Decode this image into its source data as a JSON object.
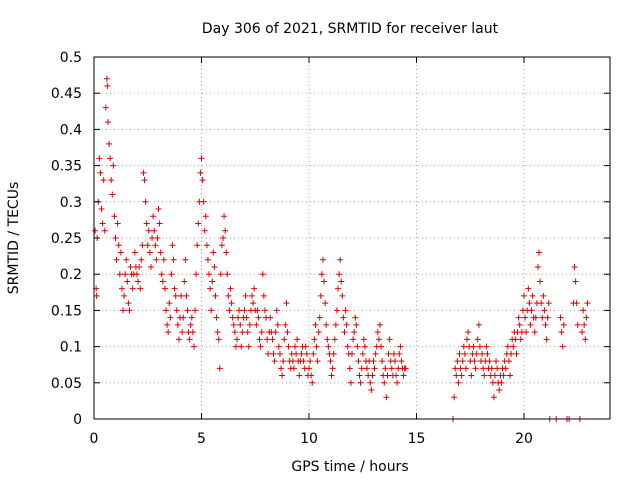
{
  "chart_data": {
    "type": "scatter",
    "title": "Day 306 of 2021, SRMTID for receiver laut",
    "xlabel": "GPS time / hours",
    "ylabel": "SRMTID / TECUs",
    "xlim": [
      0,
      24
    ],
    "ylim": [
      0,
      0.5
    ],
    "grid": true,
    "marker": "plus",
    "color": "#e00000",
    "x_ticks": [
      0,
      5,
      10,
      15,
      20
    ],
    "x_tick_labels": [
      "0",
      "5",
      "10",
      "15",
      "20"
    ],
    "y_ticks": [
      0,
      0.05,
      0.1,
      0.15,
      0.2,
      0.25,
      0.3,
      0.35,
      0.4,
      0.45,
      0.5
    ],
    "y_tick_labels": [
      "0",
      "0.05",
      "0.1",
      "0.15",
      "0.2",
      "0.25",
      "0.3",
      "0.35",
      "0.4",
      "0.45",
      "0.5"
    ],
    "points": [
      [
        0.05,
        0.26
      ],
      [
        0.1,
        0.18
      ],
      [
        0.12,
        0.17
      ],
      [
        0.15,
        0.25
      ],
      [
        0.2,
        0.3
      ],
      [
        0.25,
        0.36
      ],
      [
        0.3,
        0.34
      ],
      [
        0.35,
        0.29
      ],
      [
        0.4,
        0.27
      ],
      [
        0.45,
        0.33
      ],
      [
        0.5,
        0.26
      ],
      [
        0.55,
        0.43
      ],
      [
        0.6,
        0.47
      ],
      [
        0.62,
        0.46
      ],
      [
        0.65,
        0.41
      ],
      [
        0.7,
        0.38
      ],
      [
        0.75,
        0.36
      ],
      [
        0.8,
        0.33
      ],
      [
        0.85,
        0.31
      ],
      [
        0.9,
        0.35
      ],
      [
        0.95,
        0.28
      ],
      [
        1.0,
        0.25
      ],
      [
        1.05,
        0.22
      ],
      [
        1.1,
        0.27
      ],
      [
        1.15,
        0.24
      ],
      [
        1.2,
        0.2
      ],
      [
        1.25,
        0.23
      ],
      [
        1.3,
        0.18
      ],
      [
        1.35,
        0.15
      ],
      [
        1.4,
        0.17
      ],
      [
        1.45,
        0.2
      ],
      [
        1.5,
        0.22
      ],
      [
        1.55,
        0.19
      ],
      [
        1.6,
        0.16
      ],
      [
        1.65,
        0.15
      ],
      [
        1.7,
        0.21
      ],
      [
        1.75,
        0.2
      ],
      [
        1.8,
        0.18
      ],
      [
        1.85,
        0.2
      ],
      [
        1.9,
        0.23
      ],
      [
        1.95,
        0.21
      ],
      [
        2.0,
        0.2
      ],
      [
        2.05,
        0.19
      ],
      [
        2.1,
        0.21
      ],
      [
        2.15,
        0.18
      ],
      [
        2.2,
        0.22
      ],
      [
        2.25,
        0.24
      ],
      [
        2.3,
        0.34
      ],
      [
        2.35,
        0.33
      ],
      [
        2.4,
        0.3
      ],
      [
        2.45,
        0.27
      ],
      [
        2.5,
        0.24
      ],
      [
        2.55,
        0.26
      ],
      [
        2.6,
        0.23
      ],
      [
        2.65,
        0.21
      ],
      [
        2.7,
        0.25
      ],
      [
        2.75,
        0.28
      ],
      [
        2.8,
        0.26
      ],
      [
        2.85,
        0.24
      ],
      [
        2.9,
        0.22
      ],
      [
        2.95,
        0.25
      ],
      [
        3.0,
        0.29
      ],
      [
        3.05,
        0.27
      ],
      [
        3.1,
        0.23
      ],
      [
        3.15,
        0.2
      ],
      [
        3.2,
        0.19
      ],
      [
        3.25,
        0.22
      ],
      [
        3.3,
        0.18
      ],
      [
        3.35,
        0.15
      ],
      [
        3.4,
        0.13
      ],
      [
        3.45,
        0.12
      ],
      [
        3.5,
        0.16
      ],
      [
        3.55,
        0.14
      ],
      [
        3.6,
        0.2
      ],
      [
        3.65,
        0.24
      ],
      [
        3.7,
        0.22
      ],
      [
        3.75,
        0.18
      ],
      [
        3.8,
        0.17
      ],
      [
        3.85,
        0.15
      ],
      [
        3.9,
        0.13
      ],
      [
        3.95,
        0.11
      ],
      [
        4.0,
        0.14
      ],
      [
        4.05,
        0.17
      ],
      [
        4.1,
        0.12
      ],
      [
        4.15,
        0.14
      ],
      [
        4.2,
        0.19
      ],
      [
        4.25,
        0.22
      ],
      [
        4.3,
        0.17
      ],
      [
        4.35,
        0.15
      ],
      [
        4.4,
        0.12
      ],
      [
        4.45,
        0.11
      ],
      [
        4.5,
        0.13
      ],
      [
        4.55,
        0.14
      ],
      [
        4.6,
        0.12
      ],
      [
        4.65,
        0.1
      ],
      [
        4.7,
        0.15
      ],
      [
        4.75,
        0.2
      ],
      [
        4.8,
        0.24
      ],
      [
        4.85,
        0.27
      ],
      [
        4.9,
        0.3
      ],
      [
        4.95,
        0.34
      ],
      [
        5.0,
        0.36
      ],
      [
        5.05,
        0.33
      ],
      [
        5.1,
        0.3
      ],
      [
        5.15,
        0.26
      ],
      [
        5.2,
        0.28
      ],
      [
        5.25,
        0.24
      ],
      [
        5.3,
        0.22
      ],
      [
        5.35,
        0.2
      ],
      [
        5.4,
        0.18
      ],
      [
        5.45,
        0.15
      ],
      [
        5.5,
        0.19
      ],
      [
        5.55,
        0.23
      ],
      [
        5.6,
        0.21
      ],
      [
        5.65,
        0.17
      ],
      [
        5.7,
        0.14
      ],
      [
        5.75,
        0.12
      ],
      [
        5.8,
        0.11
      ],
      [
        5.85,
        0.07
      ],
      [
        5.9,
        0.2
      ],
      [
        5.95,
        0.24
      ],
      [
        6.0,
        0.25
      ],
      [
        6.05,
        0.28
      ],
      [
        6.1,
        0.26
      ],
      [
        6.15,
        0.23
      ],
      [
        6.2,
        0.2
      ],
      [
        6.25,
        0.17
      ],
      [
        6.3,
        0.15
      ],
      [
        6.35,
        0.18
      ],
      [
        6.4,
        0.16
      ],
      [
        6.45,
        0.14
      ],
      [
        6.5,
        0.13
      ],
      [
        6.55,
        0.12
      ],
      [
        6.6,
        0.1
      ],
      [
        6.65,
        0.11
      ],
      [
        6.7,
        0.14
      ],
      [
        6.75,
        0.15
      ],
      [
        6.8,
        0.13
      ],
      [
        6.85,
        0.1
      ],
      [
        6.9,
        0.12
      ],
      [
        6.95,
        0.14
      ],
      [
        7.0,
        0.15
      ],
      [
        7.05,
        0.17
      ],
      [
        7.1,
        0.14
      ],
      [
        7.15,
        0.12
      ],
      [
        7.2,
        0.1
      ],
      [
        7.25,
        0.13
      ],
      [
        7.3,
        0.15
      ],
      [
        7.35,
        0.17
      ],
      [
        7.4,
        0.16
      ],
      [
        7.45,
        0.18
      ],
      [
        7.5,
        0.15
      ],
      [
        7.55,
        0.13
      ],
      [
        7.6,
        0.15
      ],
      [
        7.65,
        0.14
      ],
      [
        7.7,
        0.11
      ],
      [
        7.75,
        0.1
      ],
      [
        7.8,
        0.12
      ],
      [
        7.85,
        0.2
      ],
      [
        7.9,
        0.17
      ],
      [
        7.95,
        0.15
      ],
      [
        8.0,
        0.14
      ],
      [
        8.05,
        0.11
      ],
      [
        8.1,
        0.09
      ],
      [
        8.15,
        0.12
      ],
      [
        8.2,
        0.14
      ],
      [
        8.25,
        0.12
      ],
      [
        8.3,
        0.11
      ],
      [
        8.35,
        0.09
      ],
      [
        8.4,
        0.08
      ],
      [
        8.45,
        0.12
      ],
      [
        8.5,
        0.15
      ],
      [
        8.55,
        0.13
      ],
      [
        8.6,
        0.1
      ],
      [
        8.65,
        0.09
      ],
      [
        8.7,
        0.07
      ],
      [
        8.75,
        0.06
      ],
      [
        8.8,
        0.08
      ],
      [
        8.85,
        0.11
      ],
      [
        8.9,
        0.13
      ],
      [
        8.95,
        0.16
      ],
      [
        9.0,
        0.12
      ],
      [
        9.05,
        0.1
      ],
      [
        9.1,
        0.08
      ],
      [
        9.15,
        0.07
      ],
      [
        9.2,
        0.09
      ],
      [
        9.25,
        0.08
      ],
      [
        9.3,
        0.07
      ],
      [
        9.35,
        0.1
      ],
      [
        9.4,
        0.09
      ],
      [
        9.45,
        0.11
      ],
      [
        9.5,
        0.08
      ],
      [
        9.55,
        0.06
      ],
      [
        9.6,
        0.08
      ],
      [
        9.65,
        0.09
      ],
      [
        9.7,
        0.1
      ],
      [
        9.75,
        0.08
      ],
      [
        9.8,
        0.07
      ],
      [
        9.85,
        0.1
      ],
      [
        9.9,
        0.09
      ],
      [
        9.95,
        0.06
      ],
      [
        10.0,
        0.07
      ],
      [
        10.05,
        0.08
      ],
      [
        10.1,
        0.06
      ],
      [
        10.15,
        0.05
      ],
      [
        10.2,
        0.09
      ],
      [
        10.25,
        0.11
      ],
      [
        10.3,
        0.13
      ],
      [
        10.35,
        0.1
      ],
      [
        10.4,
        0.08
      ],
      [
        10.45,
        0.12
      ],
      [
        10.5,
        0.14
      ],
      [
        10.55,
        0.17
      ],
      [
        10.6,
        0.2
      ],
      [
        10.65,
        0.22
      ],
      [
        10.7,
        0.19
      ],
      [
        10.75,
        0.16
      ],
      [
        10.8,
        0.13
      ],
      [
        10.85,
        0.11
      ],
      [
        10.9,
        0.1
      ],
      [
        10.95,
        0.09
      ],
      [
        11.0,
        0.08
      ],
      [
        11.05,
        0.06
      ],
      [
        11.1,
        0.07
      ],
      [
        11.15,
        0.09
      ],
      [
        11.2,
        0.11
      ],
      [
        11.25,
        0.13
      ],
      [
        11.3,
        0.15
      ],
      [
        11.35,
        0.18
      ],
      [
        11.4,
        0.2
      ],
      [
        11.45,
        0.22
      ],
      [
        11.5,
        0.19
      ],
      [
        11.55,
        0.17
      ],
      [
        11.6,
        0.14
      ],
      [
        11.65,
        0.12
      ],
      [
        11.7,
        0.15
      ],
      [
        11.75,
        0.13
      ],
      [
        11.8,
        0.1
      ],
      [
        11.85,
        0.09
      ],
      [
        11.9,
        0.07
      ],
      [
        11.95,
        0.05
      ],
      [
        12.0,
        0.09
      ],
      [
        12.05,
        0.11
      ],
      [
        12.1,
        0.12
      ],
      [
        12.15,
        0.14
      ],
      [
        12.2,
        0.13
      ],
      [
        12.25,
        0.1
      ],
      [
        12.3,
        0.08
      ],
      [
        12.35,
        0.06
      ],
      [
        12.4,
        0.05
      ],
      [
        12.45,
        0.07
      ],
      [
        12.5,
        0.09
      ],
      [
        12.55,
        0.11
      ],
      [
        12.6,
        0.1
      ],
      [
        12.65,
        0.08
      ],
      [
        12.7,
        0.07
      ],
      [
        12.75,
        0.06
      ],
      [
        12.8,
        0.08
      ],
      [
        12.85,
        0.05
      ],
      [
        12.9,
        0.04
      ],
      [
        12.95,
        0.06
      ],
      [
        13.0,
        0.08
      ],
      [
        13.05,
        0.07
      ],
      [
        13.1,
        0.09
      ],
      [
        13.15,
        0.1
      ],
      [
        13.2,
        0.12
      ],
      [
        13.25,
        0.11
      ],
      [
        13.3,
        0.13
      ],
      [
        13.35,
        0.1
      ],
      [
        13.4,
        0.08
      ],
      [
        13.45,
        0.06
      ],
      [
        13.5,
        0.05
      ],
      [
        13.55,
        0.07
      ],
      [
        13.6,
        0.03
      ],
      [
        13.65,
        0.06
      ],
      [
        13.7,
        0.09
      ],
      [
        13.75,
        0.11
      ],
      [
        13.8,
        0.08
      ],
      [
        13.85,
        0.07
      ],
      [
        13.9,
        0.06
      ],
      [
        13.95,
        0.09
      ],
      [
        14.0,
        0.08
      ],
      [
        14.05,
        0.06
      ],
      [
        14.1,
        0.05
      ],
      [
        14.15,
        0.07
      ],
      [
        14.2,
        0.09
      ],
      [
        14.25,
        0.1
      ],
      [
        14.3,
        0.08
      ],
      [
        14.35,
        0.07
      ],
      [
        14.4,
        0.06
      ],
      [
        14.45,
        0.07
      ],
      [
        14.5,
        0.07
      ],
      [
        16.7,
        0.0
      ],
      [
        16.75,
        0.03
      ],
      [
        16.8,
        0.07
      ],
      [
        16.85,
        0.06
      ],
      [
        16.9,
        0.08
      ],
      [
        16.95,
        0.05
      ],
      [
        17.0,
        0.09
      ],
      [
        17.05,
        0.07
      ],
      [
        17.1,
        0.06
      ],
      [
        17.15,
        0.08
      ],
      [
        17.2,
        0.1
      ],
      [
        17.25,
        0.09
      ],
      [
        17.3,
        0.07
      ],
      [
        17.35,
        0.11
      ],
      [
        17.4,
        0.12
      ],
      [
        17.45,
        0.1
      ],
      [
        17.5,
        0.08
      ],
      [
        17.55,
        0.06
      ],
      [
        17.6,
        0.09
      ],
      [
        17.65,
        0.1
      ],
      [
        17.7,
        0.08
      ],
      [
        17.75,
        0.07
      ],
      [
        17.8,
        0.09
      ],
      [
        17.85,
        0.11
      ],
      [
        17.9,
        0.13
      ],
      [
        17.95,
        0.1
      ],
      [
        18.0,
        0.08
      ],
      [
        18.05,
        0.09
      ],
      [
        18.1,
        0.07
      ],
      [
        18.15,
        0.06
      ],
      [
        18.2,
        0.08
      ],
      [
        18.25,
        0.1
      ],
      [
        18.3,
        0.09
      ],
      [
        18.35,
        0.07
      ],
      [
        18.4,
        0.08
      ],
      [
        18.45,
        0.06
      ],
      [
        18.5,
        0.07
      ],
      [
        18.55,
        0.05
      ],
      [
        18.6,
        0.03
      ],
      [
        18.65,
        0.06
      ],
      [
        18.7,
        0.08
      ],
      [
        18.75,
        0.07
      ],
      [
        18.8,
        0.05
      ],
      [
        18.85,
        0.04
      ],
      [
        18.9,
        0.06
      ],
      [
        18.95,
        0.05
      ],
      [
        19.0,
        0.07
      ],
      [
        19.05,
        0.06
      ],
      [
        19.1,
        0.08
      ],
      [
        19.15,
        0.07
      ],
      [
        19.2,
        0.09
      ],
      [
        19.25,
        0.1
      ],
      [
        19.3,
        0.08
      ],
      [
        19.35,
        0.06
      ],
      [
        19.4,
        0.09
      ],
      [
        19.45,
        0.11
      ],
      [
        19.5,
        0.1
      ],
      [
        19.55,
        0.12
      ],
      [
        19.6,
        0.11
      ],
      [
        19.65,
        0.09
      ],
      [
        19.7,
        0.12
      ],
      [
        19.75,
        0.14
      ],
      [
        19.8,
        0.13
      ],
      [
        19.85,
        0.11
      ],
      [
        19.9,
        0.12
      ],
      [
        19.95,
        0.15
      ],
      [
        20.0,
        0.17
      ],
      [
        20.05,
        0.14
      ],
      [
        20.1,
        0.12
      ],
      [
        20.15,
        0.15
      ],
      [
        20.2,
        0.18
      ],
      [
        20.25,
        0.16
      ],
      [
        20.3,
        0.13
      ],
      [
        20.35,
        0.15
      ],
      [
        20.4,
        0.17
      ],
      [
        20.45,
        0.14
      ],
      [
        20.5,
        0.12
      ],
      [
        20.55,
        0.14
      ],
      [
        20.6,
        0.16
      ],
      [
        20.65,
        0.21
      ],
      [
        20.7,
        0.23
      ],
      [
        20.75,
        0.19
      ],
      [
        20.8,
        0.16
      ],
      [
        20.85,
        0.14
      ],
      [
        20.9,
        0.17
      ],
      [
        20.95,
        0.15
      ],
      [
        21.0,
        0.13
      ],
      [
        21.05,
        0.11
      ],
      [
        21.1,
        0.14
      ],
      [
        21.15,
        0.16
      ],
      [
        21.2,
        0.0
      ],
      [
        21.5,
        0.0
      ],
      [
        21.7,
        0.14
      ],
      [
        21.75,
        0.12
      ],
      [
        21.8,
        0.1
      ],
      [
        21.85,
        0.13
      ],
      [
        22.0,
        0.0
      ],
      [
        22.1,
        0.0
      ],
      [
        22.3,
        0.16
      ],
      [
        22.35,
        0.21
      ],
      [
        22.4,
        0.19
      ],
      [
        22.45,
        0.16
      ],
      [
        22.5,
        0.13
      ],
      [
        22.6,
        0.0
      ],
      [
        22.7,
        0.12
      ],
      [
        22.75,
        0.15
      ],
      [
        22.8,
        0.13
      ],
      [
        22.85,
        0.11
      ],
      [
        22.9,
        0.14
      ],
      [
        22.95,
        0.16
      ]
    ]
  }
}
